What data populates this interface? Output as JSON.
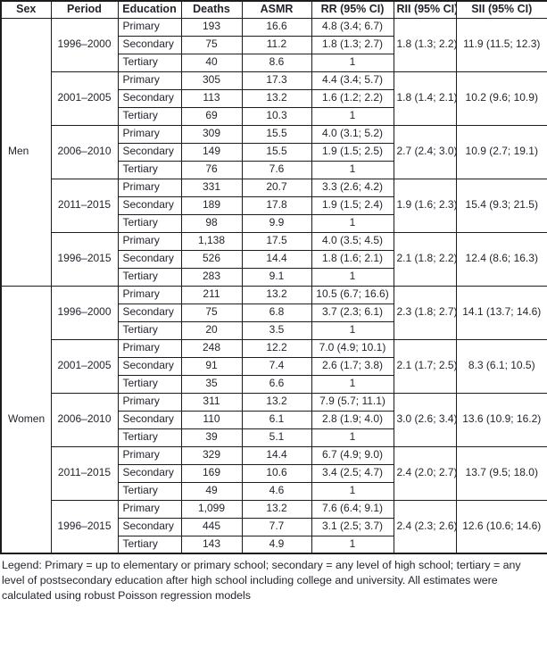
{
  "table": {
    "headers": [
      "Sex",
      "Period",
      "Education",
      "Deaths",
      "ASMR",
      "RR (95% CI)",
      "RII (95% CI)",
      "SII (95% CI)"
    ],
    "sections": [
      {
        "sex": "Men",
        "periods": [
          {
            "period": "1996–2000",
            "rii": "1.8 (1.3; 2.2)",
            "sii": "11.9 (11.5; 12.3)",
            "rows": [
              {
                "education": "Primary",
                "deaths": "193",
                "asmr": "16.6",
                "rr": "4.8 (3.4; 6.7)"
              },
              {
                "education": "Secondary",
                "deaths": "75",
                "asmr": "11.2",
                "rr": "1.8 (1.3; 2.7)"
              },
              {
                "education": "Tertiary",
                "deaths": "40",
                "asmr": "8.6",
                "rr": "1"
              }
            ]
          },
          {
            "period": "2001–2005",
            "rii": "1.8 (1.4; 2.1)",
            "sii": "10.2 (9.6; 10.9)",
            "rows": [
              {
                "education": "Primary",
                "deaths": "305",
                "asmr": "17.3",
                "rr": "4.4 (3.4; 5.7)"
              },
              {
                "education": "Secondary",
                "deaths": "113",
                "asmr": "13.2",
                "rr": "1.6 (1.2; 2.2)"
              },
              {
                "education": "Tertiary",
                "deaths": "69",
                "asmr": "10.3",
                "rr": "1"
              }
            ]
          },
          {
            "period": "2006–2010",
            "rii": "2.7 (2.4; 3.0)",
            "sii": "10.9 (2.7; 19.1)",
            "rows": [
              {
                "education": "Primary",
                "deaths": "309",
                "asmr": "15.5",
                "rr": "4.0 (3.1; 5.2)"
              },
              {
                "education": "Secondary",
                "deaths": "149",
                "asmr": "15.5",
                "rr": "1.9 (1.5; 2.5)"
              },
              {
                "education": "Tertiary",
                "deaths": "76",
                "asmr": "7.6",
                "rr": "1"
              }
            ]
          },
          {
            "period": "2011–2015",
            "rii": "1.9 (1.6; 2.3)",
            "sii": "15.4 (9.3; 21.5)",
            "rows": [
              {
                "education": "Primary",
                "deaths": "331",
                "asmr": "20.7",
                "rr": "3.3 (2.6; 4.2)"
              },
              {
                "education": "Secondary",
                "deaths": "189",
                "asmr": "17.8",
                "rr": "1.9 (1.5; 2.4)"
              },
              {
                "education": "Tertiary",
                "deaths": "98",
                "asmr": "9.9",
                "rr": "1"
              }
            ]
          },
          {
            "period": "1996–2015",
            "rii": "2.1 (1.8; 2.2)",
            "sii": "12.4 (8.6; 16.3)",
            "rows": [
              {
                "education": "Primary",
                "deaths": "1,138",
                "asmr": "17.5",
                "rr": "4.0 (3.5; 4.5)"
              },
              {
                "education": "Secondary",
                "deaths": "526",
                "asmr": "14.4",
                "rr": "1.8 (1.6; 2.1)"
              },
              {
                "education": "Tertiary",
                "deaths": "283",
                "asmr": "9.1",
                "rr": "1"
              }
            ]
          }
        ]
      },
      {
        "sex": "Women",
        "periods": [
          {
            "period": "1996–2000",
            "rii": "2.3 (1.8; 2.7)",
            "sii": "14.1 (13.7; 14.6)",
            "rows": [
              {
                "education": "Primary",
                "deaths": "211",
                "asmr": "13.2",
                "rr": "10.5 (6.7; 16.6)"
              },
              {
                "education": "Secondary",
                "deaths": "75",
                "asmr": "6.8",
                "rr": "3.7 (2.3; 6.1)"
              },
              {
                "education": "Tertiary",
                "deaths": "20",
                "asmr": "3.5",
                "rr": "1"
              }
            ]
          },
          {
            "period": "2001–2005",
            "rii": "2.1 (1.7; 2.5)",
            "sii": "8.3 (6.1; 10.5)",
            "rows": [
              {
                "education": "Primary",
                "deaths": "248",
                "asmr": "12.2",
                "rr": "7.0 (4.9; 10.1)"
              },
              {
                "education": "Secondary",
                "deaths": "91",
                "asmr": "7.4",
                "rr": "2.6 (1.7; 3.8)"
              },
              {
                "education": "Tertiary",
                "deaths": "35",
                "asmr": "6.6",
                "rr": "1"
              }
            ]
          },
          {
            "period": "2006–2010",
            "rii": "3.0 (2.6; 3.4)",
            "sii": "13.6 (10.9; 16.2)",
            "rows": [
              {
                "education": "Primary",
                "deaths": "311",
                "asmr": "13.2",
                "rr": "7.9 (5.7; 11.1)"
              },
              {
                "education": "Secondary",
                "deaths": "110",
                "asmr": "6.1",
                "rr": "2.8 (1.9; 4.0)"
              },
              {
                "education": "Tertiary",
                "deaths": "39",
                "asmr": "5.1",
                "rr": "1"
              }
            ]
          },
          {
            "period": "2011–2015",
            "rii": "2.4 (2.0; 2.7)",
            "sii": "13.7 (9.5; 18.0)",
            "rows": [
              {
                "education": "Primary",
                "deaths": "329",
                "asmr": "14.4",
                "rr": "6.7 (4.9; 9.0)"
              },
              {
                "education": "Secondary",
                "deaths": "169",
                "asmr": "10.6",
                "rr": "3.4 (2.5; 4.7)"
              },
              {
                "education": "Tertiary",
                "deaths": "49",
                "asmr": "4.6",
                "rr": "1"
              }
            ]
          },
          {
            "period": "1996–2015",
            "rii": "2.4 (2.3; 2.6)",
            "sii": "12.6 (10.6; 14.6)",
            "rows": [
              {
                "education": "Primary",
                "deaths": "1,099",
                "asmr": "13.2",
                "rr": "7.6 (6.4; 9.1)"
              },
              {
                "education": "Secondary",
                "deaths": "445",
                "asmr": "7.7",
                "rr": "3.1 (2.5; 3.7)"
              },
              {
                "education": "Tertiary",
                "deaths": "143",
                "asmr": "4.9",
                "rr": "1"
              }
            ]
          }
        ]
      }
    ]
  },
  "legend": {
    "text": "Legend: Primary = up to elementary or primary school; secondary = any level of high school; tertiary = any level of postsecondary education after high school including college and university. All estimates were calculated using robust Poisson regression models"
  },
  "colors": {
    "text": "#24242e",
    "border": "#1c1c1c",
    "background": "#ffffff"
  }
}
